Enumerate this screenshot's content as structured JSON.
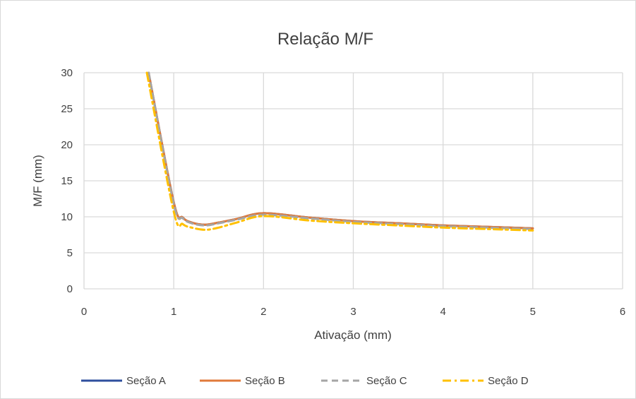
{
  "chart_data": {
    "type": "line",
    "title": "Relação M/F",
    "xlabel": "Ativação (mm)",
    "ylabel": "M/F (mm)",
    "xlim": [
      0,
      6
    ],
    "ylim": [
      0,
      30
    ],
    "xticks": [
      0,
      1,
      2,
      3,
      4,
      5,
      6
    ],
    "yticks": [
      0,
      5,
      10,
      15,
      20,
      25,
      30
    ],
    "grid": true,
    "legend_position": "bottom",
    "series": [
      {
        "name": "Seção A",
        "color": "#2e4f9e",
        "dash": "solid",
        "x": [
          0.72,
          1.0,
          1.1,
          1.2,
          1.35,
          1.5,
          1.7,
          2.0,
          2.5,
          3.0,
          3.5,
          4.0,
          4.5,
          5.0
        ],
        "y": [
          30.0,
          12.0,
          9.9,
          9.2,
          8.9,
          9.2,
          9.7,
          10.5,
          9.9,
          9.4,
          9.1,
          8.8,
          8.6,
          8.4
        ]
      },
      {
        "name": "Seção B",
        "color": "#e07a3a",
        "dash": "solid",
        "x": [
          0.72,
          1.0,
          1.1,
          1.2,
          1.35,
          1.5,
          1.7,
          2.0,
          2.5,
          3.0,
          3.5,
          4.0,
          4.5,
          5.0
        ],
        "y": [
          30.0,
          12.0,
          9.9,
          9.2,
          8.9,
          9.2,
          9.7,
          10.5,
          9.9,
          9.4,
          9.1,
          8.8,
          8.6,
          8.4
        ]
      },
      {
        "name": "Seção C",
        "color": "#a5a5a5",
        "dash": "dashed",
        "x": [
          0.72,
          1.0,
          1.1,
          1.2,
          1.35,
          1.5,
          1.7,
          2.0,
          2.5,
          3.0,
          3.5,
          4.0,
          4.5,
          5.0
        ],
        "y": [
          30.0,
          11.8,
          9.8,
          9.1,
          8.8,
          9.1,
          9.6,
          10.3,
          9.8,
          9.3,
          9.0,
          8.7,
          8.5,
          8.3
        ]
      },
      {
        "name": "Seção D",
        "color": "#ffc000",
        "dash": "dashdot",
        "x": [
          0.7,
          1.0,
          1.1,
          1.2,
          1.35,
          1.5,
          1.7,
          2.0,
          2.5,
          3.0,
          3.5,
          4.0,
          4.5,
          5.0
        ],
        "y": [
          30.0,
          10.7,
          9.0,
          8.5,
          8.2,
          8.5,
          9.2,
          10.1,
          9.5,
          9.1,
          8.8,
          8.5,
          8.3,
          8.1
        ]
      }
    ]
  }
}
